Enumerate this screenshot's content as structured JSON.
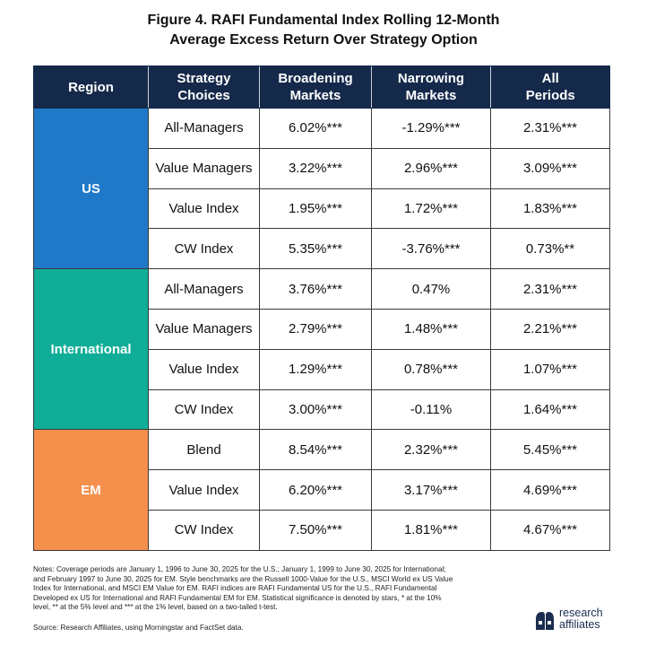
{
  "title": {
    "line1": "Figure 4. RAFI Fundamental Index Rolling 12-Month",
    "line2": "Average Excess Return Over Strategy Option"
  },
  "table": {
    "headers": {
      "region": "Region",
      "strategy_l1": "Strategy",
      "strategy_l2": "Choices",
      "broadening_l1": "Broadening",
      "broadening_l2": "Markets",
      "narrowing_l1": "Narrowing",
      "narrowing_l2": "Markets",
      "all_l1": "All",
      "all_l2": "Periods"
    },
    "regions": [
      {
        "name": "US",
        "color": "#1f79c8",
        "rows": [
          {
            "strategy": "All-Managers",
            "broadening": "6.02%***",
            "narrowing": "-1.29%***",
            "all": "2.31%***"
          },
          {
            "strategy": "Value Managers",
            "broadening": "3.22%***",
            "narrowing": "2.96%***",
            "all": "3.09%***"
          },
          {
            "strategy": "Value Index",
            "broadening": "1.95%***",
            "narrowing": "1.72%***",
            "all": "1.83%***"
          },
          {
            "strategy": "CW Index",
            "broadening": "5.35%***",
            "narrowing": "-3.76%***",
            "all": "0.73%**"
          }
        ]
      },
      {
        "name": "International",
        "color": "#10ad98",
        "rows": [
          {
            "strategy": "All-Managers",
            "broadening": "3.76%***",
            "narrowing": "0.47%",
            "all": "2.31%***"
          },
          {
            "strategy": "Value Managers",
            "broadening": "2.79%***",
            "narrowing": "1.48%***",
            "all": "2.21%***"
          },
          {
            "strategy": "Value Index",
            "broadening": "1.29%***",
            "narrowing": "0.78%***",
            "all": "1.07%***"
          },
          {
            "strategy": "CW Index",
            "broadening": "3.00%***",
            "narrowing": "-0.11%",
            "all": "1.64%***"
          }
        ]
      },
      {
        "name": "EM",
        "color": "#f5904c",
        "rows": [
          {
            "strategy": "Blend",
            "broadening": "8.54%***",
            "narrowing": "2.32%***",
            "all": "5.45%***"
          },
          {
            "strategy": "Value Index",
            "broadening": "6.20%***",
            "narrowing": "3.17%***",
            "all": "4.69%***"
          },
          {
            "strategy": "CW Index",
            "broadening": "7.50%***",
            "narrowing": "1.81%***",
            "all": "4.67%***"
          }
        ]
      }
    ]
  },
  "notes": {
    "line1": "Notes: Coverage periods are January 1, 1996 to June 30, 2025 for the U.S.; January 1, 1999 to June 30, 2025 for International;",
    "line2": "and February 1997 to June 30, 2025 for EM. Style benchmarks are the Russell 1000-Value for the U.S., MSCI World ex US Value",
    "line3": "Index for International, and MSCI EM Value for EM. RAFI indices are RAFI Fundamental US for the U.S., RAFI Fundamental",
    "line4": "Developed ex US for International and RAFI Fundamental EM for EM. Statistical significance is denoted by stars, * at the 10%",
    "line5": "level, ** at the 5% level and *** at the 1% level, based on a two-tailed t-test."
  },
  "source": "Source: Research Affiliates, using Morningstar and FactSet data.",
  "logo": {
    "line1": "research",
    "line2": "affiliates",
    "mark_icon": "research-affiliates-logo-mark",
    "color": "#1b2d4f"
  }
}
